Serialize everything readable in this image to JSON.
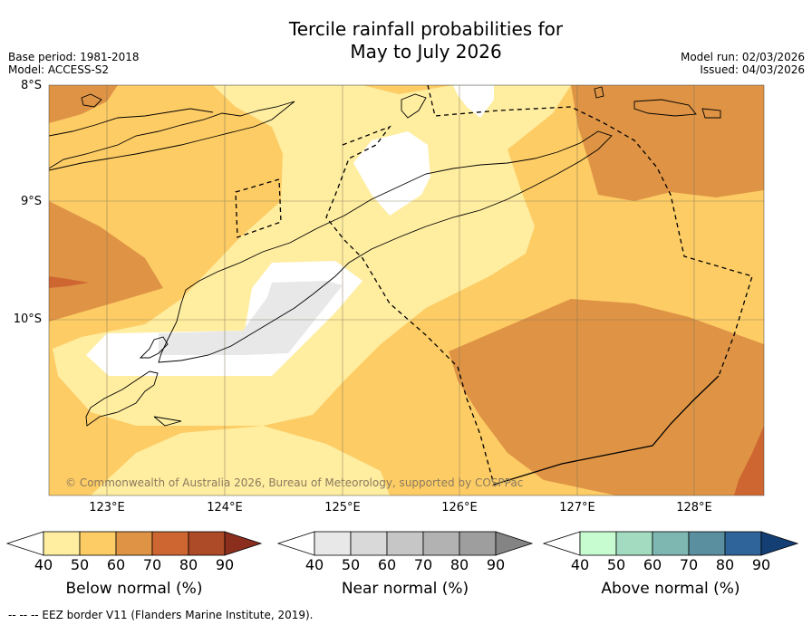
{
  "title_line1": "Tercile rainfall probabilities for",
  "title_line2": "May to July 2026",
  "base_period": "Base period: 1981-2018",
  "model": "Model: ACCESS-S2",
  "model_run": "Model run: 02/03/2026",
  "issued": "Issued: 04/03/2026",
  "lat_labels": [
    "8°S",
    "9°S",
    "10°S"
  ],
  "lon_labels": [
    "123°E",
    "124°E",
    "125°E",
    "126°E",
    "127°E",
    "128°E"
  ],
  "copyright": "© Commonwealth of Australia 2026, Bureau of Meteorology, supported by COSPPac",
  "colorbars": [
    {
      "label": "Below normal (%)",
      "ticks": [
        "40",
        "50",
        "60",
        "70",
        "80",
        "90"
      ],
      "colors": [
        "#ffffff",
        "#ffeda0",
        "#fdcc65",
        "#df9445",
        "#ce6631",
        "#ad4a27",
        "#8c2e1d"
      ]
    },
    {
      "label": "Near normal (%)",
      "ticks": [
        "40",
        "50",
        "60",
        "70",
        "80",
        "90"
      ],
      "colors": [
        "#ffffff",
        "#e8e8e8",
        "#d9d9d9",
        "#c6c6c6",
        "#b2b2b2",
        "#9e9e9e",
        "#848484"
      ]
    },
    {
      "label": "Above normal (%)",
      "ticks": [
        "40",
        "50",
        "60",
        "70",
        "80",
        "90"
      ],
      "colors": [
        "#ffffff",
        "#c7fcd1",
        "#a2dbc0",
        "#7eb6b2",
        "#5a8fa0",
        "#2e649a",
        "#143f74"
      ]
    }
  ],
  "eez_note": "--  --  -- EEZ border V11 (Flanders Marine Institute, 2019)."
}
